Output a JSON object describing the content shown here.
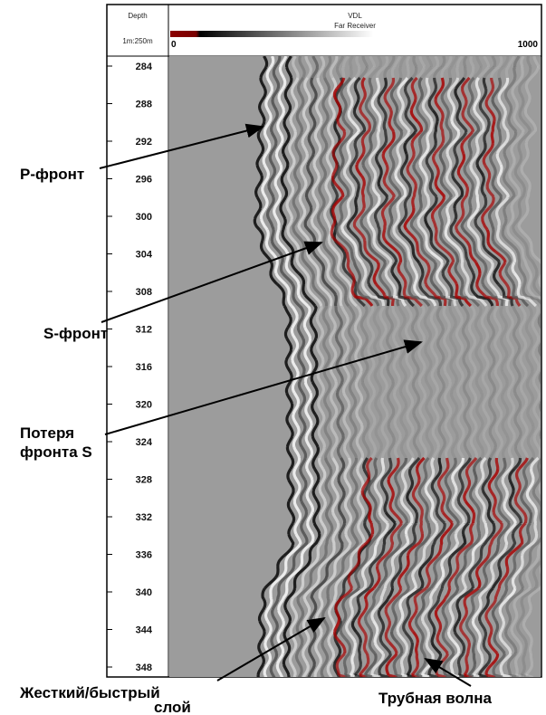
{
  "depth_track": {
    "label": "Depth",
    "scale": "1m:250m",
    "ticks": [
      284,
      288,
      292,
      296,
      300,
      304,
      308,
      312,
      316,
      320,
      324,
      328,
      332,
      336,
      340,
      344,
      348
    ]
  },
  "vdl_track": {
    "title": "VDL",
    "subtitle": "Far Receiver",
    "scale_min": "0",
    "scale_max": "1000"
  },
  "annotations": [
    {
      "lines": [
        "P-фронт"
      ]
    },
    {
      "lines": [
        "S-фронт"
      ]
    },
    {
      "lines": [
        "Потеря",
        "фронта S"
      ]
    },
    {
      "lines": [
        "Жесткий/быстрый",
        "слой"
      ]
    },
    {
      "lines": [
        "Трубная волна"
      ]
    }
  ]
}
